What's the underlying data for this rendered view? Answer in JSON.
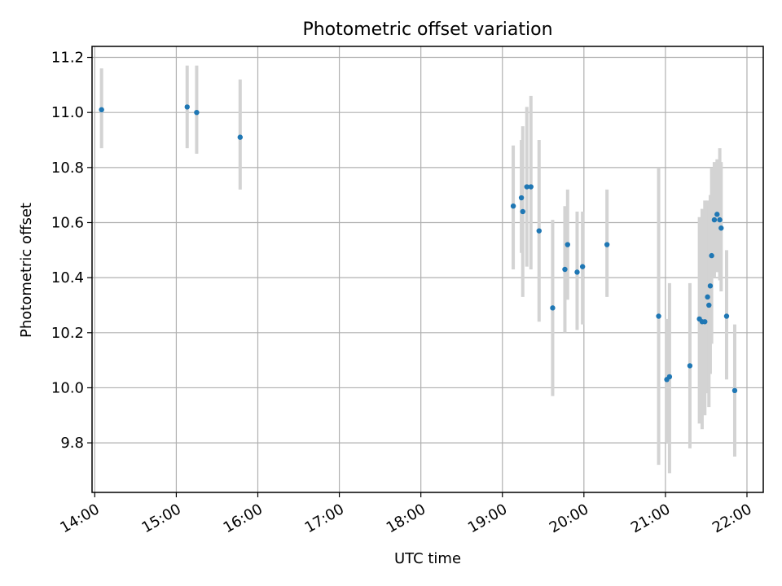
{
  "chart_data": {
    "type": "scatter",
    "title": "Photometric offset variation",
    "xlabel": "UTC time",
    "ylabel": "Photometric offset",
    "x_ticks": [
      "14:00",
      "15:00",
      "16:00",
      "17:00",
      "18:00",
      "19:00",
      "20:00",
      "21:00",
      "22:00"
    ],
    "y_ticks": [
      "9.8",
      "10.0",
      "10.2",
      "10.4",
      "10.6",
      "10.8",
      "11.0",
      "11.2"
    ],
    "xlim": [
      "13:58",
      "22:12"
    ],
    "ylim": [
      9.62,
      11.24
    ],
    "grid": true,
    "marker_color": "#1f77b4",
    "errorbar_color": "#d3d3d3",
    "points": [
      {
        "x": "14:05",
        "y": 11.01,
        "yerr": [
          10.87,
          11.16
        ]
      },
      {
        "x": "15:08",
        "y": 11.02,
        "yerr": [
          10.87,
          11.17
        ]
      },
      {
        "x": "15:15",
        "y": 11.0,
        "yerr": [
          10.85,
          11.17
        ]
      },
      {
        "x": "15:47",
        "y": 10.91,
        "yerr": [
          10.72,
          11.12
        ]
      },
      {
        "x": "19:08",
        "y": 10.66,
        "yerr": [
          10.43,
          10.88
        ]
      },
      {
        "x": "19:14",
        "y": 10.69,
        "yerr": [
          10.49,
          10.9
        ]
      },
      {
        "x": "19:15",
        "y": 10.64,
        "yerr": [
          10.33,
          10.95
        ]
      },
      {
        "x": "19:18",
        "y": 10.73,
        "yerr": [
          10.44,
          11.02
        ]
      },
      {
        "x": "19:21",
        "y": 10.73,
        "yerr": [
          10.43,
          11.06
        ]
      },
      {
        "x": "19:27",
        "y": 10.57,
        "yerr": [
          10.24,
          10.9
        ]
      },
      {
        "x": "19:37",
        "y": 10.29,
        "yerr": [
          9.97,
          10.61
        ]
      },
      {
        "x": "19:46",
        "y": 10.43,
        "yerr": [
          10.2,
          10.66
        ]
      },
      {
        "x": "19:48",
        "y": 10.52,
        "yerr": [
          10.32,
          10.72
        ]
      },
      {
        "x": "19:55",
        "y": 10.42,
        "yerr": [
          10.21,
          10.64
        ]
      },
      {
        "x": "19:59",
        "y": 10.44,
        "yerr": [
          10.23,
          10.64
        ]
      },
      {
        "x": "20:17",
        "y": 10.52,
        "yerr": [
          10.33,
          10.72
        ]
      },
      {
        "x": "20:55",
        "y": 10.26,
        "yerr": [
          9.72,
          10.8
        ]
      },
      {
        "x": "21:01",
        "y": 10.03,
        "yerr": [
          9.8,
          10.25
        ]
      },
      {
        "x": "21:03",
        "y": 10.04,
        "yerr": [
          9.69,
          10.38
        ]
      },
      {
        "x": "21:18",
        "y": 10.08,
        "yerr": [
          9.78,
          10.38
        ]
      },
      {
        "x": "21:25",
        "y": 10.25,
        "yerr": [
          9.87,
          10.62
        ]
      },
      {
        "x": "21:27",
        "y": 10.24,
        "yerr": [
          9.85,
          10.65
        ]
      },
      {
        "x": "21:29",
        "y": 10.24,
        "yerr": [
          9.9,
          10.68
        ]
      },
      {
        "x": "21:31",
        "y": 10.33,
        "yerr": [
          9.98,
          10.68
        ]
      },
      {
        "x": "21:32",
        "y": 10.3,
        "yerr": [
          9.93,
          10.66
        ]
      },
      {
        "x": "21:33",
        "y": 10.37,
        "yerr": [
          10.05,
          10.7
        ]
      },
      {
        "x": "21:34",
        "y": 10.48,
        "yerr": [
          10.16,
          10.8
        ]
      },
      {
        "x": "21:36",
        "y": 10.61,
        "yerr": [
          10.4,
          10.82
        ]
      },
      {
        "x": "21:38",
        "y": 10.63,
        "yerr": [
          10.42,
          10.83
        ]
      },
      {
        "x": "21:40",
        "y": 10.61,
        "yerr": [
          10.39,
          10.87
        ]
      },
      {
        "x": "21:41",
        "y": 10.58,
        "yerr": [
          10.35,
          10.82
        ]
      },
      {
        "x": "21:45",
        "y": 10.26,
        "yerr": [
          10.03,
          10.5
        ]
      },
      {
        "x": "21:51",
        "y": 9.99,
        "yerr": [
          9.75,
          10.23
        ]
      }
    ]
  }
}
